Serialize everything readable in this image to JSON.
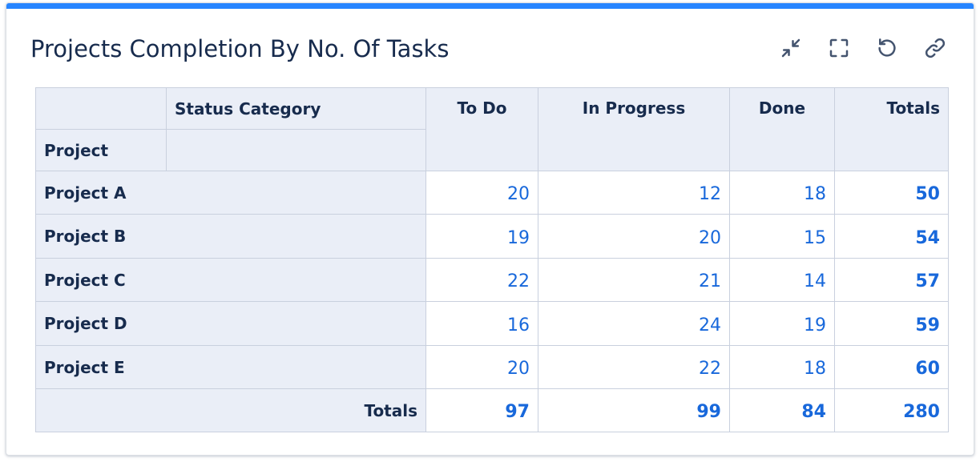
{
  "gadget": {
    "title": "Projects Completion By No. Of Tasks",
    "accent_color": "#2684ff",
    "toolbar": [
      {
        "name": "minimize-icon"
      },
      {
        "name": "fullscreen-icon"
      },
      {
        "name": "refresh-icon"
      },
      {
        "name": "link-icon"
      }
    ]
  },
  "table": {
    "corner_col_label": "Status Category",
    "corner_row_label": "Project",
    "columns": [
      "To Do",
      "In Progress",
      "Done",
      "Totals"
    ],
    "rows": [
      {
        "label": "Project A",
        "values": [
          "20",
          "12",
          "18"
        ],
        "total": "50"
      },
      {
        "label": "Project B",
        "values": [
          "19",
          "20",
          "15"
        ],
        "total": "54"
      },
      {
        "label": "Project C",
        "values": [
          "22",
          "21",
          "14"
        ],
        "total": "57"
      },
      {
        "label": "Project D",
        "values": [
          "16",
          "24",
          "19"
        ],
        "total": "59"
      },
      {
        "label": "Project E",
        "values": [
          "20",
          "22",
          "18"
        ],
        "total": "60"
      }
    ],
    "totals_row": {
      "label": "Totals",
      "values": [
        "97",
        "99",
        "84"
      ],
      "total": "280"
    },
    "link_color": "#1868db"
  }
}
